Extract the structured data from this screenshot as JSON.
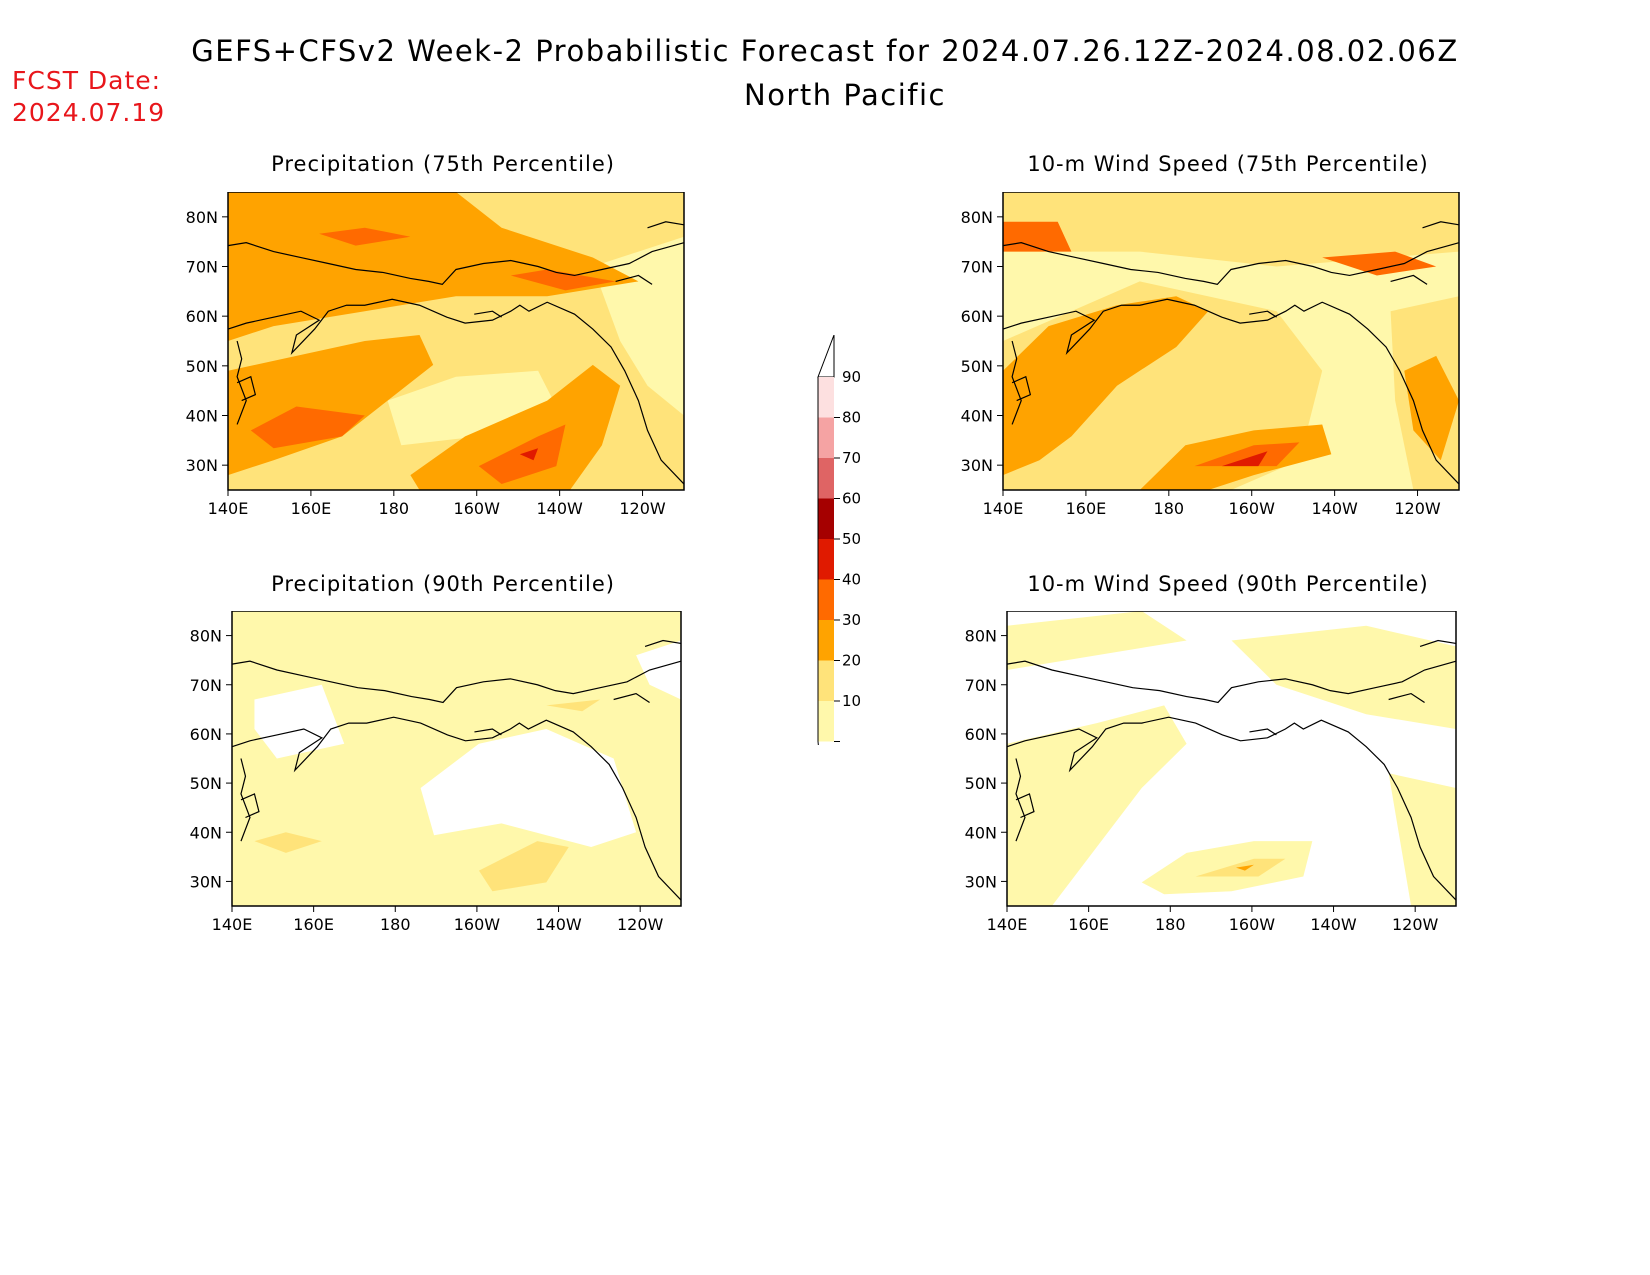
{
  "title": "GEFS+CFSv2 Week-2 Probabilistic Forecast for 2024.07.26.12Z-2024.08.02.06Z",
  "subtitle": "North Pacific",
  "fcst_label": "FCST Date:",
  "fcst_date": "2024.07.19",
  "colors": {
    "c10": "#fff8ab",
    "c20": "#ffe37a",
    "c30": "#ffa300",
    "c40": "#ff6a00",
    "c50": "#e01a00",
    "c60": "#a50000",
    "c70": "#df6464",
    "c80": "#f5a3a3",
    "c90": "#fde0e0"
  },
  "colorbar": {
    "labels": [
      "90",
      "80",
      "70",
      "60",
      "50",
      "40",
      "30",
      "20",
      "10"
    ]
  },
  "axes": {
    "lat_labels": [
      "80N",
      "70N",
      "60N",
      "50N",
      "40N",
      "30N"
    ],
    "lon_labels": [
      "140E",
      "160E",
      "180",
      "160W",
      "140W",
      "120W"
    ]
  },
  "panels": [
    {
      "id": "precip75",
      "title": "Precipitation (75th Percentile)"
    },
    {
      "id": "wind75",
      "title": "10-m Wind Speed (75th Percentile)"
    },
    {
      "id": "precip90",
      "title": "Precipitation (90th Percentile)"
    },
    {
      "id": "wind90",
      "title": "10-m Wind Speed (90th Percentile)"
    }
  ]
}
